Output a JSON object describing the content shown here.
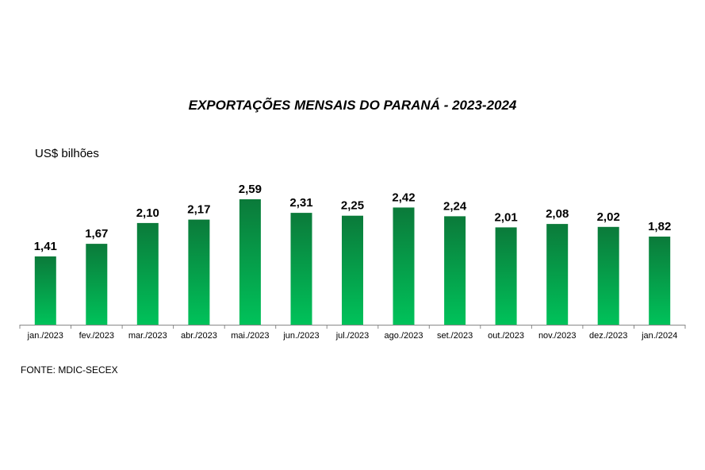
{
  "chart_data": {
    "type": "bar",
    "title": "EXPORTAÇÕES MENSAIS DO PARANÁ - 2023-2024",
    "ylabel": "US$ bilhões",
    "categories": [
      "jan./2023",
      "fev./2023",
      "mar./2023",
      "abr./2023",
      "mai./2023",
      "jun./2023",
      "jul./2023",
      "ago./2023",
      "set./2023",
      "out./2023",
      "nov./2023",
      "dez./2023",
      "jan./2024"
    ],
    "values": [
      1.41,
      1.67,
      2.1,
      2.17,
      2.59,
      2.31,
      2.25,
      2.42,
      2.24,
      2.01,
      2.08,
      2.02,
      1.82
    ],
    "labels": [
      "1,41",
      "1,67",
      "2,10",
      "2,17",
      "2,59",
      "2,31",
      "2,25",
      "2,42",
      "2,24",
      "2,01",
      "2,08",
      "2,02",
      "1,82"
    ],
    "ylim": [
      0,
      2.59
    ],
    "grid": false,
    "colors": {
      "bar_top": "#0b7a3a",
      "bar_bottom": "#00c25a",
      "axis": "#888888"
    }
  },
  "source": "FONTE:  MDIC-SECEX"
}
